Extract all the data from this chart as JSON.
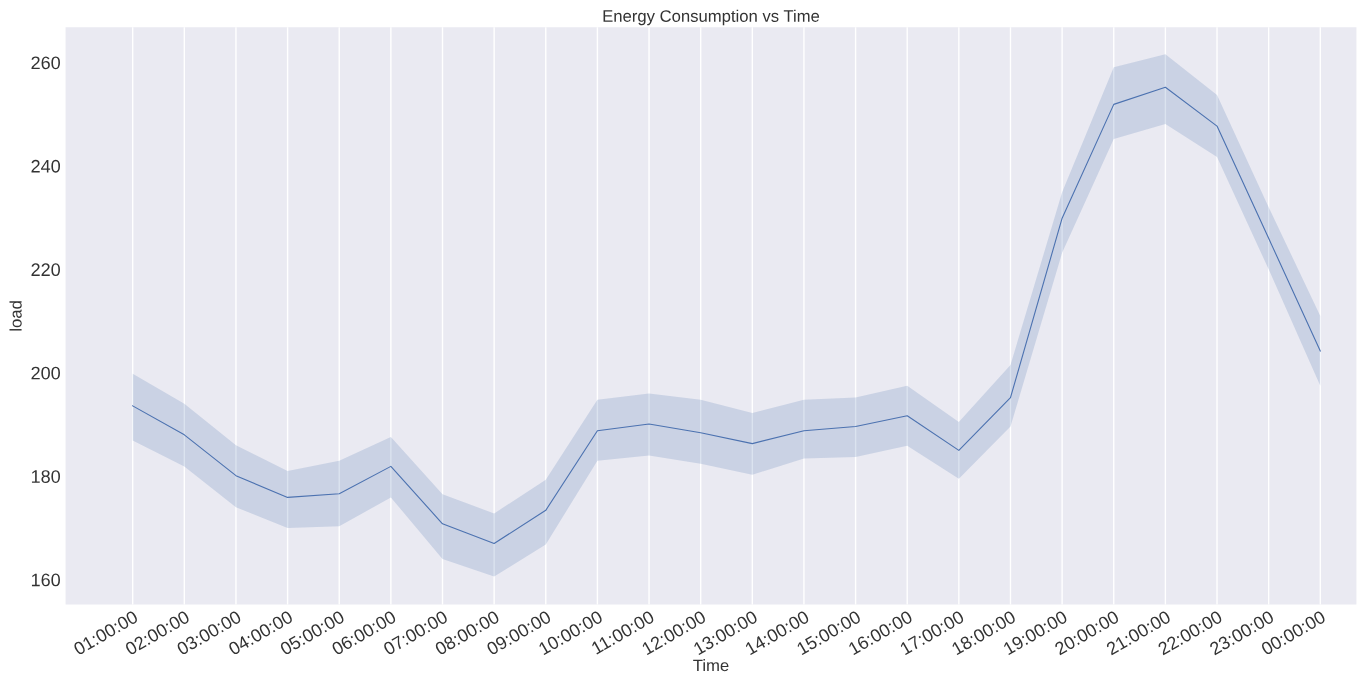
{
  "chart_data": {
    "type": "line",
    "title": "Energy Consumption vs Time",
    "xlabel": "Time",
    "ylabel": "load",
    "categories": [
      "01:00:00",
      "02:00:00",
      "03:00:00",
      "04:00:00",
      "05:00:00",
      "06:00:00",
      "07:00:00",
      "08:00:00",
      "09:00:00",
      "10:00:00",
      "11:00:00",
      "12:00:00",
      "13:00:00",
      "14:00:00",
      "15:00:00",
      "16:00:00",
      "17:00:00",
      "18:00:00",
      "19:00:00",
      "20:00:00",
      "21:00:00",
      "22:00:00",
      "23:00:00",
      "00:00:00"
    ],
    "series": [
      {
        "color": "#4c72b0",
        "values": [
          193.6,
          188.0,
          180.1,
          175.9,
          176.6,
          181.9,
          170.8,
          167.0,
          173.4,
          188.8,
          190.1,
          188.4,
          186.3,
          188.8,
          189.6,
          191.7,
          185.0,
          195.2,
          229.9,
          251.9,
          255.2,
          247.7,
          226.0,
          204.2
        ],
        "lower": [
          186.9,
          181.9,
          174.0,
          170.0,
          170.3,
          175.9,
          164.0,
          160.6,
          166.8,
          183.0,
          184.0,
          182.4,
          180.3,
          183.4,
          183.7,
          185.9,
          179.5,
          189.6,
          223.2,
          245.2,
          248.1,
          241.7,
          220.0,
          197.5
        ],
        "upper": [
          199.8,
          194.0,
          186.0,
          181.0,
          183.0,
          187.6,
          176.5,
          172.8,
          179.3,
          194.8,
          196.0,
          194.8,
          192.2,
          194.8,
          195.2,
          197.5,
          190.5,
          201.5,
          234.9,
          259.1,
          261.6,
          253.7,
          232.0,
          211.0
        ]
      }
    ],
    "ylim": [
      155.2,
      266.8
    ],
    "yticks": [
      160,
      180,
      200,
      220,
      240,
      260
    ],
    "grid": "x",
    "line_style": "solid"
  }
}
